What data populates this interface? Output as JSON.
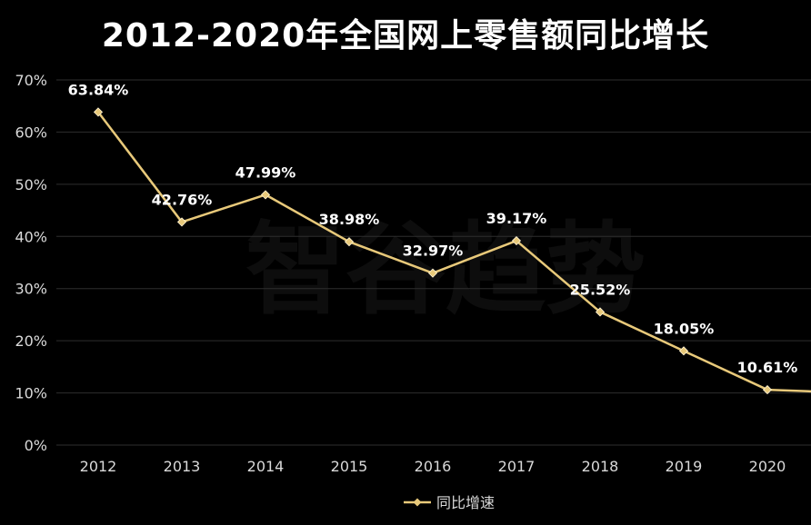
{
  "chart_data": {
    "type": "line",
    "title": "2012-2020年全国网上零售额同比增长",
    "categories": [
      "2012",
      "2013",
      "2014",
      "2015",
      "2016",
      "2017",
      "2018",
      "2019",
      "2020"
    ],
    "series": [
      {
        "name": "同比增速",
        "values": [
          63.84,
          42.76,
          47.99,
          38.98,
          32.97,
          39.17,
          25.52,
          18.05,
          10.61
        ],
        "labels": [
          "63.84%",
          "42.76%",
          "47.99%",
          "38.98%",
          "32.97%",
          "39.17%",
          "25.52%",
          "18.05%",
          "10.61%"
        ],
        "color": "#e8c97a"
      }
    ],
    "yticks": [
      "0%",
      "10%",
      "20%",
      "30%",
      "40%",
      "50%",
      "60%",
      "70%"
    ],
    "ylim": [
      0,
      70
    ],
    "grid": true,
    "legend_position": "bottom",
    "watermark": "智谷趋势"
  },
  "colors": {
    "background": "#000000",
    "line": "#e8c97a",
    "grid": "#2e2e2e",
    "text": "#ffffff"
  }
}
